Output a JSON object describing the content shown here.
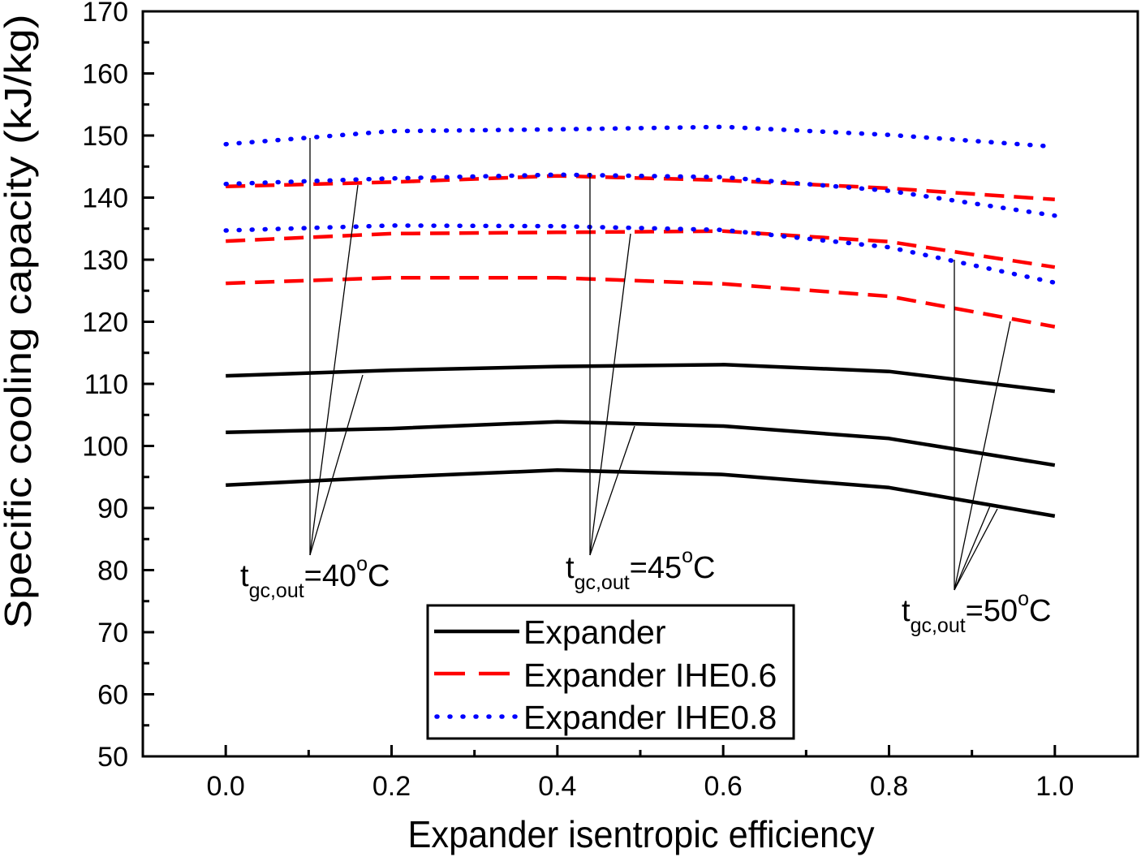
{
  "chart_data": {
    "type": "line",
    "xlabel": "Expander isentropic efficiency",
    "ylabel": "Specific cooling capacity (kJ/kg)",
    "xlim": [
      -0.1,
      1.1
    ],
    "ylim": [
      50,
      170
    ],
    "grid": false,
    "x": [
      0.0,
      0.2,
      0.4,
      0.6,
      0.8,
      1.0
    ],
    "xticks": [
      "0.0",
      "0.2",
      "0.4",
      "0.6",
      "0.8",
      "1.0"
    ],
    "yticks": [
      "50",
      "60",
      "70",
      "80",
      "90",
      "100",
      "110",
      "120",
      "130",
      "140",
      "150",
      "160",
      "170"
    ],
    "legend": [
      {
        "label": "Expander",
        "color": "#000000"
      },
      {
        "label": "Expander IHE0.6",
        "color": "#ff0000"
      },
      {
        "label": "Expander IHE0.8",
        "color": "#0000ff"
      }
    ],
    "annotations": [
      {
        "t": "t",
        "sub": "gc,out",
        "value": "=40",
        "sup": "o",
        "unit": "C"
      },
      {
        "t": "t",
        "sub": "gc,out",
        "value": "=45",
        "sup": "o",
        "unit": "C"
      },
      {
        "t": "t",
        "sub": "gc,out",
        "value": "=50",
        "sup": "o",
        "unit": "C"
      }
    ],
    "series": [
      {
        "legend": 0,
        "annotation": 0,
        "values": [
          111.3,
          112.2,
          112.8,
          113.1,
          112.0,
          108.8
        ]
      },
      {
        "legend": 0,
        "annotation": 1,
        "values": [
          102.2,
          102.8,
          103.9,
          103.2,
          101.2,
          96.9
        ]
      },
      {
        "legend": 0,
        "annotation": 2,
        "values": [
          93.7,
          95.0,
          96.1,
          95.4,
          93.3,
          88.7
        ]
      },
      {
        "legend": 1,
        "annotation": 0,
        "values": [
          141.8,
          142.5,
          143.5,
          142.8,
          141.5,
          139.7
        ]
      },
      {
        "legend": 1,
        "annotation": 1,
        "values": [
          133.0,
          134.2,
          134.4,
          134.6,
          132.9,
          128.8
        ]
      },
      {
        "legend": 1,
        "annotation": 2,
        "values": [
          126.2,
          127.1,
          127.1,
          126.1,
          124.1,
          119.2
        ]
      },
      {
        "legend": 2,
        "annotation": 0,
        "values": [
          148.6,
          150.7,
          151.0,
          151.4,
          150.1,
          148.2
        ]
      },
      {
        "legend": 2,
        "annotation": 1,
        "values": [
          142.2,
          143.1,
          143.7,
          143.3,
          141.1,
          137.1
        ]
      },
      {
        "legend": 2,
        "annotation": 2,
        "values": [
          134.7,
          135.5,
          135.4,
          134.8,
          132.0,
          126.3
        ]
      }
    ]
  }
}
